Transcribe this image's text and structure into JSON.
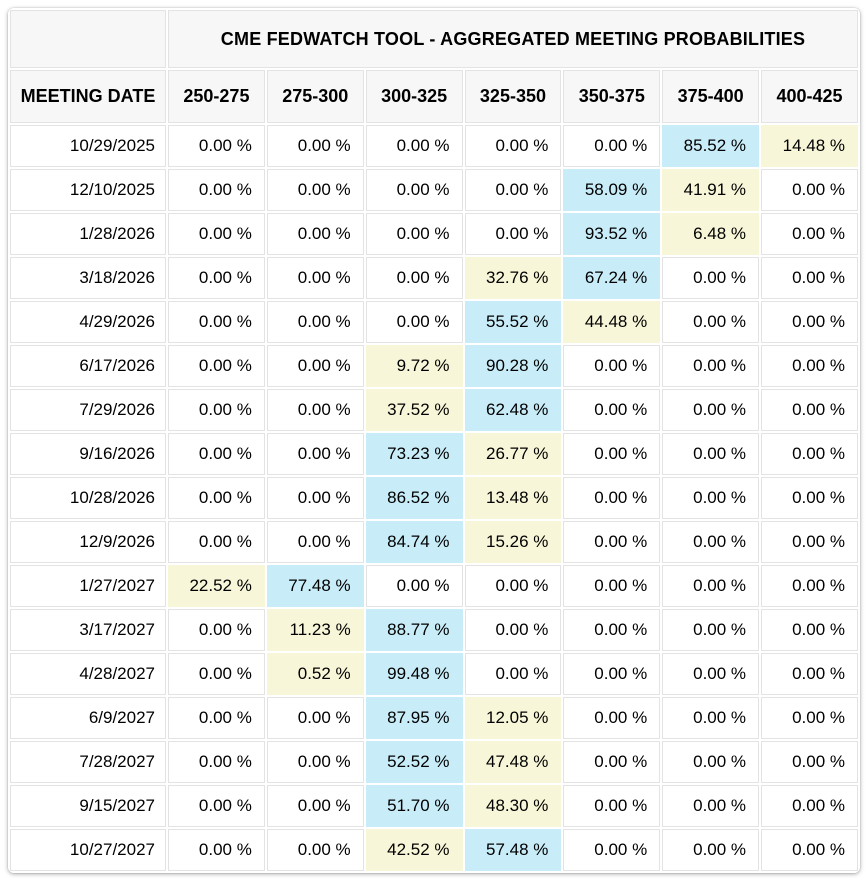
{
  "colors": {
    "highlight_top": "#c9edf8",
    "highlight_second": "#f8f6d8",
    "header_bg": "#f7f7f7",
    "cell_border": "#e3e3e3",
    "text": "#000000",
    "card_bg": "#ffffff"
  },
  "chart_data": {
    "type": "table",
    "title": "CME FEDWATCH TOOL - AGGREGATED MEETING PROBABILITIES",
    "row_header": "MEETING DATE",
    "columns": [
      "250-275",
      "275-300",
      "300-325",
      "325-350",
      "350-375",
      "375-400",
      "400-425"
    ],
    "unit": "%",
    "highlight_legend": {
      "blue": "highest probability in row",
      "yellow": "second highest probability in row"
    },
    "rows": [
      {
        "date": "10/29/2025",
        "values": [
          0.0,
          0.0,
          0.0,
          0.0,
          0.0,
          85.52,
          14.48
        ],
        "highlights": [
          "none",
          "none",
          "none",
          "none",
          "none",
          "blue",
          "yellow"
        ]
      },
      {
        "date": "12/10/2025",
        "values": [
          0.0,
          0.0,
          0.0,
          0.0,
          58.09,
          41.91,
          0.0
        ],
        "highlights": [
          "none",
          "none",
          "none",
          "none",
          "blue",
          "yellow",
          "none"
        ]
      },
      {
        "date": "1/28/2026",
        "values": [
          0.0,
          0.0,
          0.0,
          0.0,
          93.52,
          6.48,
          0.0
        ],
        "highlights": [
          "none",
          "none",
          "none",
          "none",
          "blue",
          "yellow",
          "none"
        ]
      },
      {
        "date": "3/18/2026",
        "values": [
          0.0,
          0.0,
          0.0,
          32.76,
          67.24,
          0.0,
          0.0
        ],
        "highlights": [
          "none",
          "none",
          "none",
          "yellow",
          "blue",
          "none",
          "none"
        ]
      },
      {
        "date": "4/29/2026",
        "values": [
          0.0,
          0.0,
          0.0,
          55.52,
          44.48,
          0.0,
          0.0
        ],
        "highlights": [
          "none",
          "none",
          "none",
          "blue",
          "yellow",
          "none",
          "none"
        ]
      },
      {
        "date": "6/17/2026",
        "values": [
          0.0,
          0.0,
          9.72,
          90.28,
          0.0,
          0.0,
          0.0
        ],
        "highlights": [
          "none",
          "none",
          "yellow",
          "blue",
          "none",
          "none",
          "none"
        ]
      },
      {
        "date": "7/29/2026",
        "values": [
          0.0,
          0.0,
          37.52,
          62.48,
          0.0,
          0.0,
          0.0
        ],
        "highlights": [
          "none",
          "none",
          "yellow",
          "blue",
          "none",
          "none",
          "none"
        ]
      },
      {
        "date": "9/16/2026",
        "values": [
          0.0,
          0.0,
          73.23,
          26.77,
          0.0,
          0.0,
          0.0
        ],
        "highlights": [
          "none",
          "none",
          "blue",
          "yellow",
          "none",
          "none",
          "none"
        ]
      },
      {
        "date": "10/28/2026",
        "values": [
          0.0,
          0.0,
          86.52,
          13.48,
          0.0,
          0.0,
          0.0
        ],
        "highlights": [
          "none",
          "none",
          "blue",
          "yellow",
          "none",
          "none",
          "none"
        ]
      },
      {
        "date": "12/9/2026",
        "values": [
          0.0,
          0.0,
          84.74,
          15.26,
          0.0,
          0.0,
          0.0
        ],
        "highlights": [
          "none",
          "none",
          "blue",
          "yellow",
          "none",
          "none",
          "none"
        ]
      },
      {
        "date": "1/27/2027",
        "values": [
          22.52,
          77.48,
          0.0,
          0.0,
          0.0,
          0.0,
          0.0
        ],
        "highlights": [
          "yellow",
          "blue",
          "none",
          "none",
          "none",
          "none",
          "none"
        ]
      },
      {
        "date": "3/17/2027",
        "values": [
          0.0,
          11.23,
          88.77,
          0.0,
          0.0,
          0.0,
          0.0
        ],
        "highlights": [
          "none",
          "yellow",
          "blue",
          "none",
          "none",
          "none",
          "none"
        ]
      },
      {
        "date": "4/28/2027",
        "values": [
          0.0,
          0.52,
          99.48,
          0.0,
          0.0,
          0.0,
          0.0
        ],
        "highlights": [
          "none",
          "yellow",
          "blue",
          "none",
          "none",
          "none",
          "none"
        ]
      },
      {
        "date": "6/9/2027",
        "values": [
          0.0,
          0.0,
          87.95,
          12.05,
          0.0,
          0.0,
          0.0
        ],
        "highlights": [
          "none",
          "none",
          "blue",
          "yellow",
          "none",
          "none",
          "none"
        ]
      },
      {
        "date": "7/28/2027",
        "values": [
          0.0,
          0.0,
          52.52,
          47.48,
          0.0,
          0.0,
          0.0
        ],
        "highlights": [
          "none",
          "none",
          "blue",
          "yellow",
          "none",
          "none",
          "none"
        ]
      },
      {
        "date": "9/15/2027",
        "values": [
          0.0,
          0.0,
          51.7,
          48.3,
          0.0,
          0.0,
          0.0
        ],
        "highlights": [
          "none",
          "none",
          "blue",
          "yellow",
          "none",
          "none",
          "none"
        ]
      },
      {
        "date": "10/27/2027",
        "values": [
          0.0,
          0.0,
          42.52,
          57.48,
          0.0,
          0.0,
          0.0
        ],
        "highlights": [
          "none",
          "none",
          "yellow",
          "blue",
          "none",
          "none",
          "none"
        ]
      }
    ]
  }
}
